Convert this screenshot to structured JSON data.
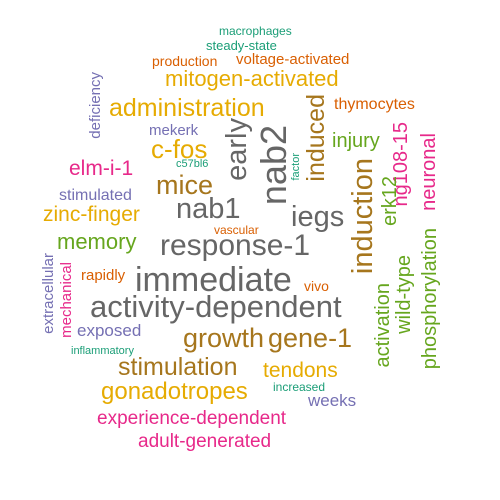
{
  "palette": {
    "teal": "#1b9e77",
    "orange": "#d95f02",
    "purple": "#7570b3",
    "magenta": "#e7298a",
    "green": "#66a61e",
    "gold": "#e6ab02",
    "brown": "#a6761d",
    "gray": "#666666"
  },
  "words": [
    {
      "text": "macrophages",
      "color": "teal"
    },
    {
      "text": "steady-state",
      "color": "teal"
    },
    {
      "text": "production",
      "color": "orange"
    },
    {
      "text": "voltage-activated",
      "color": "orange"
    },
    {
      "text": "mitogen-activated",
      "color": "gold"
    },
    {
      "text": "deficiency",
      "color": "purple"
    },
    {
      "text": "administration",
      "color": "gold"
    },
    {
      "text": "induced",
      "color": "brown"
    },
    {
      "text": "thymocytes",
      "color": "orange"
    },
    {
      "text": "mekerk",
      "color": "purple"
    },
    {
      "text": "early",
      "color": "gray"
    },
    {
      "text": "nab2",
      "color": "gray"
    },
    {
      "text": "injury",
      "color": "green"
    },
    {
      "text": "ng108-15",
      "color": "magenta"
    },
    {
      "text": "c-fos",
      "color": "gold"
    },
    {
      "text": "neuronal",
      "color": "magenta"
    },
    {
      "text": "elm-i-1",
      "color": "magenta"
    },
    {
      "text": "c57bl6",
      "color": "teal"
    },
    {
      "text": "factor",
      "color": "teal"
    },
    {
      "text": "mice",
      "color": "brown"
    },
    {
      "text": "stimulated",
      "color": "purple"
    },
    {
      "text": "erk12",
      "color": "green"
    },
    {
      "text": "nab1",
      "color": "gray"
    },
    {
      "text": "iegs",
      "color": "gray"
    },
    {
      "text": "induction",
      "color": "brown"
    },
    {
      "text": "zinc-finger",
      "color": "gold"
    },
    {
      "text": "vascular",
      "color": "orange"
    },
    {
      "text": "memory",
      "color": "green"
    },
    {
      "text": "response-1",
      "color": "gray"
    },
    {
      "text": "wild-type",
      "color": "green"
    },
    {
      "text": "phosphorylation",
      "color": "green"
    },
    {
      "text": "extracellular",
      "color": "purple"
    },
    {
      "text": "rapidly",
      "color": "orange"
    },
    {
      "text": "immediate",
      "color": "gray"
    },
    {
      "text": "vivo",
      "color": "orange"
    },
    {
      "text": "mechanical",
      "color": "magenta"
    },
    {
      "text": "activity-dependent",
      "color": "gray"
    },
    {
      "text": "activation",
      "color": "green"
    },
    {
      "text": "exposed",
      "color": "purple"
    },
    {
      "text": "growth",
      "color": "brown"
    },
    {
      "text": "gene-1",
      "color": "brown"
    },
    {
      "text": "inflammatory",
      "color": "teal"
    },
    {
      "text": "stimulation",
      "color": "brown"
    },
    {
      "text": "tendons",
      "color": "gold"
    },
    {
      "text": "increased",
      "color": "teal"
    },
    {
      "text": "gonadotropes",
      "color": "gold"
    },
    {
      "text": "weeks",
      "color": "purple"
    },
    {
      "text": "experience-dependent",
      "color": "magenta"
    },
    {
      "text": "adult-generated",
      "color": "magenta"
    }
  ]
}
